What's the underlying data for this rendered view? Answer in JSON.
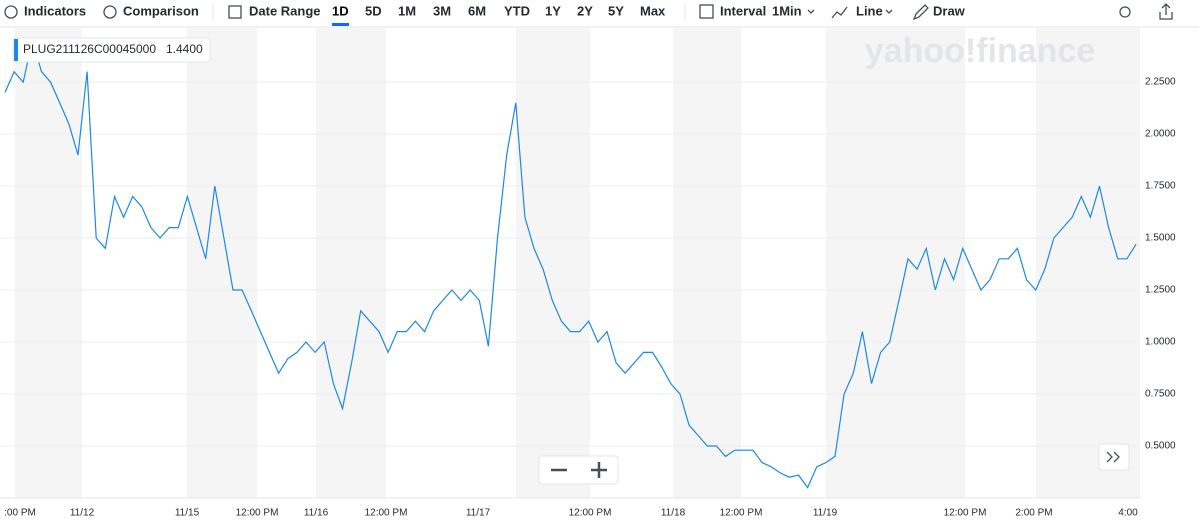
{
  "toolbar": {
    "indicators": "Indicators",
    "comparison": "Comparison",
    "date_range": "Date Range",
    "ranges": [
      "1D",
      "5D",
      "1M",
      "3M",
      "6M",
      "YTD",
      "1Y",
      "2Y",
      "5Y",
      "Max"
    ],
    "interval": "Interval",
    "interval_value": "1Min",
    "chart_type": "Line",
    "draw": "Draw"
  },
  "watermark": "yahoo!finance",
  "legend": {
    "symbol": "PLUG211126C00045000",
    "price": "1.4400"
  },
  "chart": {
    "type": "line",
    "color": "#1e88e5",
    "ylim": [
      0.25,
      2.51
    ],
    "yticks": [
      {
        "value": 0.5,
        "label": "0.5000"
      },
      {
        "value": 0.75,
        "label": "0.7500"
      },
      {
        "value": 1,
        "label": "1.0000"
      },
      {
        "value": 1.25,
        "label": "1.2500"
      },
      {
        "value": 1.5,
        "label": "1.5000"
      },
      {
        "value": 1.75,
        "label": "1.7500"
      },
      {
        "value": 2,
        "label": "2.0000"
      },
      {
        "value": 2.25,
        "label": "2.2500"
      }
    ],
    "x_labels": [
      ":00 PM",
      "11/12",
      "11/15",
      "12:00 PM",
      "11/16",
      "12:00 PM",
      "11/17",
      "12:00 PM",
      "11/18",
      "12:00 PM",
      "11/19",
      "12:00 PM",
      "2:00 PM",
      "4:00"
    ],
    "values": [
      2.2,
      2.3,
      2.25,
      2.45,
      2.3,
      2.25,
      2.15,
      2.05,
      1.9,
      2.3,
      1.5,
      1.45,
      1.7,
      1.6,
      1.7,
      1.65,
      1.55,
      1.5,
      1.55,
      1.55,
      1.7,
      1.55,
      1.4,
      1.75,
      1.5,
      1.25,
      1.25,
      1.15,
      1.05,
      0.95,
      0.85,
      0.92,
      0.95,
      1.0,
      0.95,
      1.0,
      0.8,
      0.68,
      0.9,
      1.15,
      1.1,
      1.05,
      0.95,
      1.05,
      1.05,
      1.1,
      1.05,
      1.15,
      1.2,
      1.25,
      1.2,
      1.25,
      1.2,
      0.98,
      1.5,
      1.9,
      2.15,
      1.6,
      1.45,
      1.35,
      1.2,
      1.1,
      1.05,
      1.05,
      1.1,
      1.0,
      1.05,
      0.9,
      0.85,
      0.9,
      0.95,
      0.95,
      0.88,
      0.8,
      0.75,
      0.6,
      0.55,
      0.5,
      0.5,
      0.45,
      0.48,
      0.48,
      0.48,
      0.42,
      0.4,
      0.37,
      0.35,
      0.36,
      0.3,
      0.4,
      0.42,
      0.45,
      0.75,
      0.85,
      1.05,
      0.8,
      0.95,
      1.0,
      1.2,
      1.4,
      1.35,
      1.45,
      1.25,
      1.4,
      1.3,
      1.45,
      1.35,
      1.25,
      1.3,
      1.4,
      1.4,
      1.45,
      1.3,
      1.25,
      1.35,
      1.5,
      1.55,
      1.6,
      1.7,
      1.6,
      1.75,
      1.55,
      1.4,
      1.4,
      1.47
    ]
  }
}
